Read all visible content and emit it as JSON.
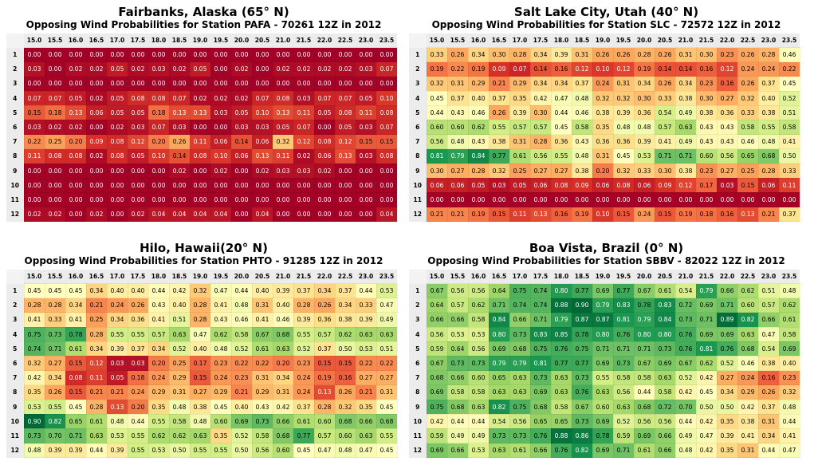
{
  "columns": [
    "15.0",
    "15.5",
    "16.0",
    "16.5",
    "17.0",
    "17.5",
    "18.0",
    "18.5",
    "19.0",
    "19.5",
    "20.0",
    "20.5",
    "21.0",
    "21.5",
    "22.0",
    "22.5",
    "23.0",
    "23.5"
  ],
  "rows": [
    "1",
    "2",
    "3",
    "4",
    "5",
    "6",
    "7",
    "8",
    "9",
    "10",
    "11",
    "12"
  ],
  "chart_data": [
    {
      "type": "heatmap",
      "title": "Fairbanks, Alaska (65° N)",
      "subtitle": "Opposing Wind Probabilities for Station PAFA - 70261 12Z in 2012",
      "values": [
        [
          0.0,
          0.0,
          0.0,
          0.0,
          0.0,
          0.0,
          0.0,
          0.0,
          0.0,
          0.0,
          0.0,
          0.0,
          0.0,
          0.0,
          0.0,
          0.0,
          0.0,
          0.0
        ],
        [
          0.03,
          0.0,
          0.02,
          0.02,
          0.05,
          0.02,
          0.03,
          0.02,
          0.05,
          0.0,
          0.02,
          0.0,
          0.02,
          0.02,
          0.02,
          0.02,
          0.03,
          0.07
        ],
        [
          0.0,
          0.0,
          0.0,
          0.0,
          0.0,
          0.0,
          0.0,
          0.0,
          0.0,
          0.0,
          0.0,
          0.0,
          0.0,
          0.0,
          0.0,
          0.0,
          0.0,
          0.0
        ],
        [
          0.07,
          0.07,
          0.05,
          0.02,
          0.05,
          0.08,
          0.08,
          0.07,
          0.02,
          0.02,
          0.02,
          0.07,
          0.08,
          0.03,
          0.07,
          0.07,
          0.05,
          0.1
        ],
        [
          0.15,
          0.18,
          0.13,
          0.06,
          0.05,
          0.05,
          0.18,
          0.13,
          0.13,
          0.03,
          0.05,
          0.1,
          0.13,
          0.11,
          0.05,
          0.08,
          0.11,
          0.08
        ],
        [
          0.03,
          0.02,
          0.02,
          0.0,
          0.02,
          0.03,
          0.07,
          0.03,
          0.0,
          0.0,
          0.03,
          0.03,
          0.05,
          0.07,
          0.0,
          0.05,
          0.03,
          0.07
        ],
        [
          0.22,
          0.25,
          0.2,
          0.09,
          0.08,
          0.12,
          0.2,
          0.26,
          0.11,
          0.06,
          0.14,
          0.06,
          0.32,
          0.12,
          0.08,
          0.12,
          0.15,
          0.15
        ],
        [
          0.11,
          0.08,
          0.08,
          0.02,
          0.08,
          0.05,
          0.1,
          0.14,
          0.08,
          0.1,
          0.06,
          0.13,
          0.11,
          0.02,
          0.06,
          0.13,
          0.03,
          0.08
        ],
        [
          0.0,
          0.0,
          0.0,
          0.0,
          0.0,
          0.0,
          0.0,
          0.02,
          0.0,
          0.02,
          0.0,
          0.02,
          0.03,
          0.03,
          0.02,
          0.0,
          0.0,
          0.0
        ],
        [
          0.0,
          0.0,
          0.0,
          0.0,
          0.0,
          0.0,
          0.0,
          0.0,
          0.0,
          0.0,
          0.0,
          0.0,
          0.0,
          0.0,
          0.0,
          0.0,
          0.0,
          0.0
        ],
        [
          0.0,
          0.0,
          0.0,
          0.0,
          0.0,
          0.0,
          0.0,
          0.0,
          0.0,
          0.0,
          0.0,
          0.0,
          0.0,
          0.0,
          0.0,
          0.0,
          0.0,
          0.0
        ],
        [
          0.02,
          0.02,
          0.0,
          0.02,
          0.0,
          0.02,
          0.04,
          0.04,
          0.04,
          0.04,
          0.0,
          0.04,
          0.0,
          0.0,
          0.0,
          0.0,
          0.0,
          0.04
        ]
      ]
    },
    {
      "type": "heatmap",
      "title": "Salt Lake City, Utah (40° N)",
      "subtitle": "Opposing Wind Probabilities for Station SLC - 72572 12Z in 2012",
      "values": [
        [
          0.33,
          0.26,
          0.34,
          0.3,
          0.28,
          0.34,
          0.39,
          0.31,
          0.26,
          0.26,
          0.28,
          0.26,
          0.31,
          0.3,
          0.23,
          0.26,
          0.28,
          0.46
        ],
        [
          0.19,
          0.22,
          0.19,
          0.09,
          0.07,
          0.14,
          0.16,
          0.12,
          0.1,
          0.12,
          0.19,
          0.14,
          0.14,
          0.16,
          0.12,
          0.24,
          0.24,
          0.22
        ],
        [
          0.32,
          0.31,
          0.29,
          0.21,
          0.29,
          0.34,
          0.34,
          0.37,
          0.24,
          0.31,
          0.34,
          0.26,
          0.34,
          0.23,
          0.16,
          0.26,
          0.37,
          0.45
        ],
        [
          0.45,
          0.37,
          0.4,
          0.37,
          0.35,
          0.42,
          0.47,
          0.48,
          0.32,
          0.32,
          0.3,
          0.33,
          0.38,
          0.3,
          0.27,
          0.32,
          0.4,
          0.52
        ],
        [
          0.44,
          0.43,
          0.46,
          0.26,
          0.39,
          0.3,
          0.44,
          0.46,
          0.38,
          0.39,
          0.36,
          0.54,
          0.49,
          0.38,
          0.36,
          0.33,
          0.38,
          0.51
        ],
        [
          0.6,
          0.6,
          0.62,
          0.55,
          0.57,
          0.57,
          0.45,
          0.58,
          0.35,
          0.48,
          0.48,
          0.57,
          0.63,
          0.43,
          0.43,
          0.58,
          0.55,
          0.58
        ],
        [
          0.56,
          0.48,
          0.43,
          0.38,
          0.31,
          0.28,
          0.36,
          0.43,
          0.36,
          0.36,
          0.39,
          0.41,
          0.49,
          0.43,
          0.43,
          0.46,
          0.48,
          0.41
        ],
        [
          0.81,
          0.79,
          0.84,
          0.77,
          0.61,
          0.56,
          0.55,
          0.48,
          0.31,
          0.45,
          0.53,
          0.71,
          0.71,
          0.6,
          0.56,
          0.65,
          0.68,
          0.5
        ],
        [
          0.3,
          0.27,
          0.28,
          0.32,
          0.25,
          0.27,
          0.27,
          0.38,
          0.2,
          0.32,
          0.33,
          0.3,
          0.38,
          0.23,
          0.27,
          0.25,
          0.28,
          0.33
        ],
        [
          0.06,
          0.06,
          0.05,
          0.03,
          0.05,
          0.06,
          0.08,
          0.09,
          0.06,
          0.08,
          0.06,
          0.09,
          0.12,
          0.17,
          0.03,
          0.15,
          0.06,
          0.11
        ],
        [
          0.0,
          0.0,
          0.0,
          0.0,
          0.0,
          0.0,
          0.0,
          0.0,
          0.0,
          0.0,
          0.0,
          0.0,
          0.0,
          0.0,
          0.0,
          0.0,
          0.0,
          0.0
        ],
        [
          0.21,
          0.21,
          0.19,
          0.15,
          0.11,
          0.13,
          0.16,
          0.19,
          0.1,
          0.15,
          0.24,
          0.15,
          0.19,
          0.18,
          0.16,
          0.13,
          0.21,
          0.37
        ]
      ]
    },
    {
      "type": "heatmap",
      "title": "Hilo, Hawaii(20° N)",
      "subtitle": "Opposing Wind Probabilities for Station PHTO - 91285 12Z in 2012",
      "values": [
        [
          0.45,
          0.45,
          0.45,
          0.34,
          0.4,
          0.4,
          0.44,
          0.42,
          0.32,
          0.47,
          0.44,
          0.4,
          0.39,
          0.37,
          0.34,
          0.37,
          0.44,
          0.53
        ],
        [
          0.28,
          0.28,
          0.34,
          0.21,
          0.24,
          0.26,
          0.43,
          0.4,
          0.28,
          0.41,
          0.48,
          0.31,
          0.4,
          0.28,
          0.26,
          0.34,
          0.33,
          0.47
        ],
        [
          0.41,
          0.33,
          0.41,
          0.25,
          0.34,
          0.36,
          0.41,
          0.51,
          0.28,
          0.43,
          0.46,
          0.41,
          0.46,
          0.39,
          0.36,
          0.38,
          0.39,
          0.49
        ],
        [
          0.75,
          0.73,
          0.78,
          0.28,
          0.55,
          0.55,
          0.57,
          0.63,
          0.47,
          0.62,
          0.58,
          0.67,
          0.68,
          0.55,
          0.57,
          0.62,
          0.63,
          0.63
        ],
        [
          0.74,
          0.71,
          0.61,
          0.34,
          0.39,
          0.37,
          0.34,
          0.52,
          0.4,
          0.48,
          0.52,
          0.61,
          0.63,
          0.52,
          0.37,
          0.5,
          0.53,
          0.51
        ],
        [
          0.32,
          0.27,
          0.15,
          0.12,
          0.03,
          0.03,
          0.2,
          0.25,
          0.17,
          0.23,
          0.22,
          0.22,
          0.2,
          0.23,
          0.15,
          0.15,
          0.22,
          0.22
        ],
        [
          0.42,
          0.34,
          0.08,
          0.11,
          0.05,
          0.18,
          0.24,
          0.29,
          0.15,
          0.24,
          0.23,
          0.31,
          0.34,
          0.24,
          0.19,
          0.16,
          0.27,
          0.27
        ],
        [
          0.35,
          0.26,
          0.15,
          0.21,
          0.21,
          0.24,
          0.29,
          0.31,
          0.27,
          0.29,
          0.21,
          0.29,
          0.31,
          0.24,
          0.13,
          0.26,
          0.21,
          0.31
        ],
        [
          0.53,
          0.55,
          0.45,
          0.28,
          0.13,
          0.2,
          0.35,
          0.48,
          0.38,
          0.45,
          0.4,
          0.43,
          0.42,
          0.37,
          0.28,
          0.32,
          0.35,
          0.45
        ],
        [
          0.9,
          0.82,
          0.65,
          0.61,
          0.48,
          0.44,
          0.55,
          0.58,
          0.48,
          0.6,
          0.69,
          0.73,
          0.66,
          0.61,
          0.6,
          0.68,
          0.66,
          0.68
        ],
        [
          0.73,
          0.7,
          0.71,
          0.63,
          0.53,
          0.55,
          0.62,
          0.62,
          0.63,
          0.35,
          0.52,
          0.58,
          0.68,
          0.77,
          0.57,
          0.6,
          0.63,
          0.55
        ],
        [
          0.48,
          0.39,
          0.39,
          0.44,
          0.39,
          0.55,
          0.53,
          0.5,
          0.55,
          0.55,
          0.5,
          0.56,
          0.6,
          0.45,
          0.47,
          0.48,
          0.47,
          0.45
        ]
      ]
    },
    {
      "type": "heatmap",
      "title": "Boa Vista, Brazil (0° N)",
      "subtitle": "Opposing Wind Probabilities for Station SBBV - 82022 12Z in 2012",
      "values": [
        [
          0.67,
          0.56,
          0.56,
          0.64,
          0.75,
          0.74,
          0.8,
          0.77,
          0.69,
          0.77,
          0.67,
          0.61,
          0.54,
          0.79,
          0.66,
          0.62,
          0.51,
          0.48
        ],
        [
          0.64,
          0.57,
          0.62,
          0.71,
          0.74,
          0.74,
          0.88,
          0.9,
          0.79,
          0.83,
          0.78,
          0.83,
          0.72,
          0.69,
          0.71,
          0.6,
          0.57,
          0.62
        ],
        [
          0.66,
          0.66,
          0.58,
          0.84,
          0.66,
          0.71,
          0.79,
          0.87,
          0.87,
          0.81,
          0.79,
          0.84,
          0.73,
          0.71,
          0.89,
          0.82,
          0.66,
          0.61
        ],
        [
          0.56,
          0.53,
          0.53,
          0.8,
          0.73,
          0.83,
          0.85,
          0.78,
          0.8,
          0.76,
          0.8,
          0.8,
          0.76,
          0.69,
          0.69,
          0.63,
          0.47,
          0.58
        ],
        [
          0.59,
          0.64,
          0.56,
          0.69,
          0.68,
          0.75,
          0.76,
          0.75,
          0.71,
          0.71,
          0.71,
          0.73,
          0.76,
          0.81,
          0.76,
          0.68,
          0.54,
          0.69
        ],
        [
          0.67,
          0.73,
          0.73,
          0.79,
          0.79,
          0.81,
          0.77,
          0.77,
          0.69,
          0.73,
          0.67,
          0.69,
          0.67,
          0.62,
          0.52,
          0.46,
          0.38,
          0.4
        ],
        [
          0.68,
          0.66,
          0.6,
          0.65,
          0.63,
          0.73,
          0.63,
          0.73,
          0.55,
          0.58,
          0.58,
          0.63,
          0.52,
          0.42,
          0.27,
          0.24,
          0.16,
          0.23
        ],
        [
          0.69,
          0.58,
          0.58,
          0.63,
          0.63,
          0.69,
          0.63,
          0.76,
          0.63,
          0.56,
          0.44,
          0.58,
          0.42,
          0.45,
          0.34,
          0.29,
          0.26,
          0.32
        ],
        [
          0.75,
          0.68,
          0.63,
          0.82,
          0.75,
          0.68,
          0.58,
          0.67,
          0.6,
          0.63,
          0.68,
          0.72,
          0.7,
          0.5,
          0.5,
          0.42,
          0.37,
          0.48
        ],
        [
          0.42,
          0.44,
          0.44,
          0.54,
          0.56,
          0.65,
          0.65,
          0.73,
          0.69,
          0.52,
          0.56,
          0.56,
          0.44,
          0.42,
          0.35,
          0.38,
          0.31,
          0.44
        ],
        [
          0.59,
          0.49,
          0.49,
          0.73,
          0.73,
          0.76,
          0.88,
          0.86,
          0.78,
          0.59,
          0.69,
          0.66,
          0.49,
          0.47,
          0.39,
          0.41,
          0.34,
          0.41
        ],
        [
          0.69,
          0.66,
          0.53,
          0.63,
          0.61,
          0.66,
          0.76,
          0.82,
          0.69,
          0.71,
          0.61,
          0.66,
          0.48,
          0.42,
          0.35,
          0.31,
          0.44,
          0.47
        ]
      ]
    }
  ]
}
